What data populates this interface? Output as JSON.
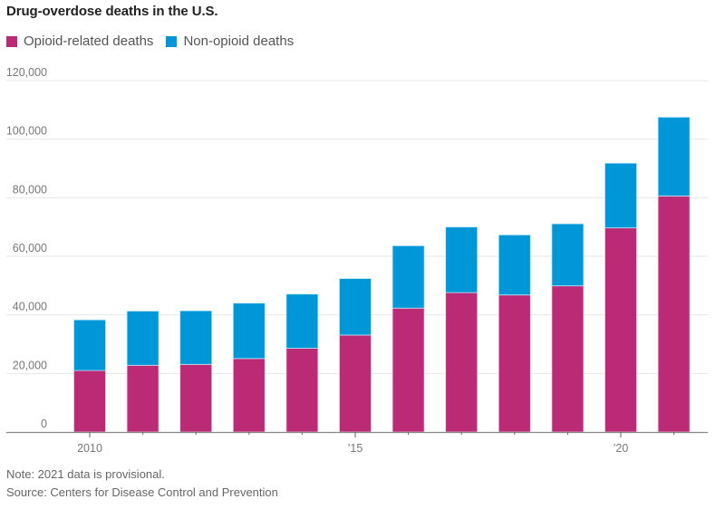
{
  "chart_data": {
    "type": "bar",
    "stacked": true,
    "title": "Drug-overdose deaths in the U.S.",
    "xlabel": "",
    "ylabel": "",
    "categories": [
      "2010",
      "2011",
      "2012",
      "2013",
      "2014",
      "2015",
      "2016",
      "2017",
      "2018",
      "2019",
      "2020",
      "2021"
    ],
    "x_tick_labels": [
      {
        "category": "2010",
        "label": "2010"
      },
      {
        "category": "2015",
        "label": "’15"
      },
      {
        "category": "2020",
        "label": "’20"
      }
    ],
    "series": [
      {
        "name": "Opioid-related deaths",
        "color": "#bb2a74",
        "values": [
          21000,
          22800,
          23100,
          25100,
          28600,
          33100,
          42300,
          47600,
          46800,
          49900,
          69700,
          80600
        ]
      },
      {
        "name": "Non-opioid deaths",
        "color": "#0097d9",
        "values": [
          17300,
          18500,
          18300,
          18900,
          18500,
          19300,
          21300,
          22400,
          20500,
          21200,
          22100,
          26900
        ]
      }
    ],
    "totals": [
      38300,
      41300,
      41400,
      44000,
      47100,
      52400,
      63600,
      70000,
      67300,
      71100,
      91800,
      107500
    ],
    "ylim": [
      0,
      120000
    ],
    "y_ticks": [
      0,
      20000,
      40000,
      60000,
      80000,
      100000,
      120000
    ],
    "y_tick_labels": [
      "0",
      "20,000",
      "40,000",
      "60,000",
      "80,000",
      "100,000",
      "120,000"
    ],
    "grid": true,
    "legend_position": "top-left"
  },
  "legend": [
    {
      "label": "Opioid-related deaths",
      "color": "#bb2a74"
    },
    {
      "label": "Non-opioid deaths",
      "color": "#0097d9"
    }
  ],
  "footer": {
    "note": "Note: 2021 data is provisional.",
    "source": "Source: Centers for Disease Control and Prevention"
  }
}
